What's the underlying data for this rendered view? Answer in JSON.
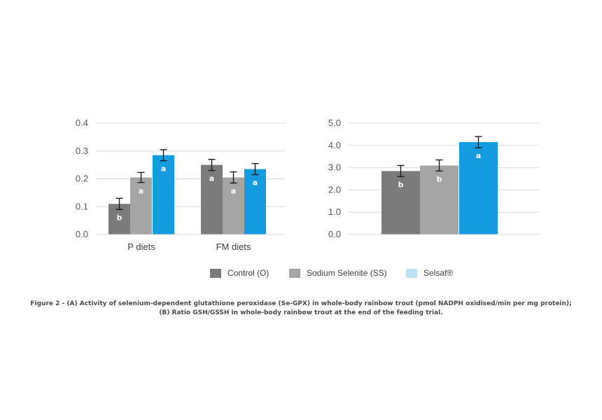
{
  "colors": {
    "control": "#7b7b7b",
    "sodium_selenite": "#a5a5a5",
    "selsaf_bar": "#139ce0",
    "selsaf_legend": "#bfe3f5",
    "grid": "#d9d9d9",
    "error_bar": "#1a1a1a"
  },
  "chart_data": [
    {
      "type": "bar",
      "categories": [
        "P diets",
        "FM diets"
      ],
      "ylim": [
        0,
        0.4
      ],
      "yticks": [
        "0.0",
        "0.1",
        "0.2",
        "0.3",
        "0.4"
      ],
      "ytick_values": [
        0,
        0.1,
        0.2,
        0.3,
        0.4
      ],
      "grid": true,
      "series": [
        {
          "name": "Control (O)",
          "values": [
            0.11,
            0.25
          ],
          "errors": [
            0.02,
            0.02
          ],
          "letters": [
            "b",
            "a"
          ]
        },
        {
          "name": "Sodium Selenite (SS)",
          "values": [
            0.205,
            0.205
          ],
          "errors": [
            0.018,
            0.02
          ],
          "letters": [
            "a",
            "a"
          ]
        },
        {
          "name": "Selsaf®",
          "values": [
            0.285,
            0.235
          ],
          "errors": [
            0.02,
            0.02
          ],
          "letters": [
            "a",
            "a"
          ]
        }
      ]
    },
    {
      "type": "bar",
      "categories": [
        ""
      ],
      "ylim": [
        0,
        5.0
      ],
      "yticks": [
        "0.0",
        "1.0",
        "2.0",
        "3.0",
        "4.0",
        "5.0"
      ],
      "ytick_values": [
        0,
        1,
        2,
        3,
        4,
        5
      ],
      "grid": true,
      "series": [
        {
          "name": "Control (O)",
          "values": [
            2.85
          ],
          "errors": [
            0.25
          ],
          "letters": [
            "b"
          ]
        },
        {
          "name": "Sodium Selenite (SS)",
          "values": [
            3.1
          ],
          "errors": [
            0.25
          ],
          "letters": [
            "b"
          ]
        },
        {
          "name": "Selsaf®",
          "values": [
            4.15
          ],
          "errors": [
            0.25
          ],
          "letters": [
            "a"
          ]
        }
      ]
    }
  ],
  "legend": {
    "items": [
      {
        "label": "Control (O)",
        "color": "#7b7b7b"
      },
      {
        "label": "Sodium Selenite (SS)",
        "color": "#a5a5a5"
      },
      {
        "label": "Selsaf®",
        "color": "#bfe3f5"
      }
    ]
  },
  "caption": {
    "line1": "Figure 2 - (A) Activity of selenium-dependent glutathione peroxidase (Se-GPX) in whole-body rainbow trout (pmol NADPH oxidised/min per mg protein);",
    "line2": "(B) Ratio GSH/GSSH in whole-body rainbow trout at the end of the feeding trial."
  }
}
